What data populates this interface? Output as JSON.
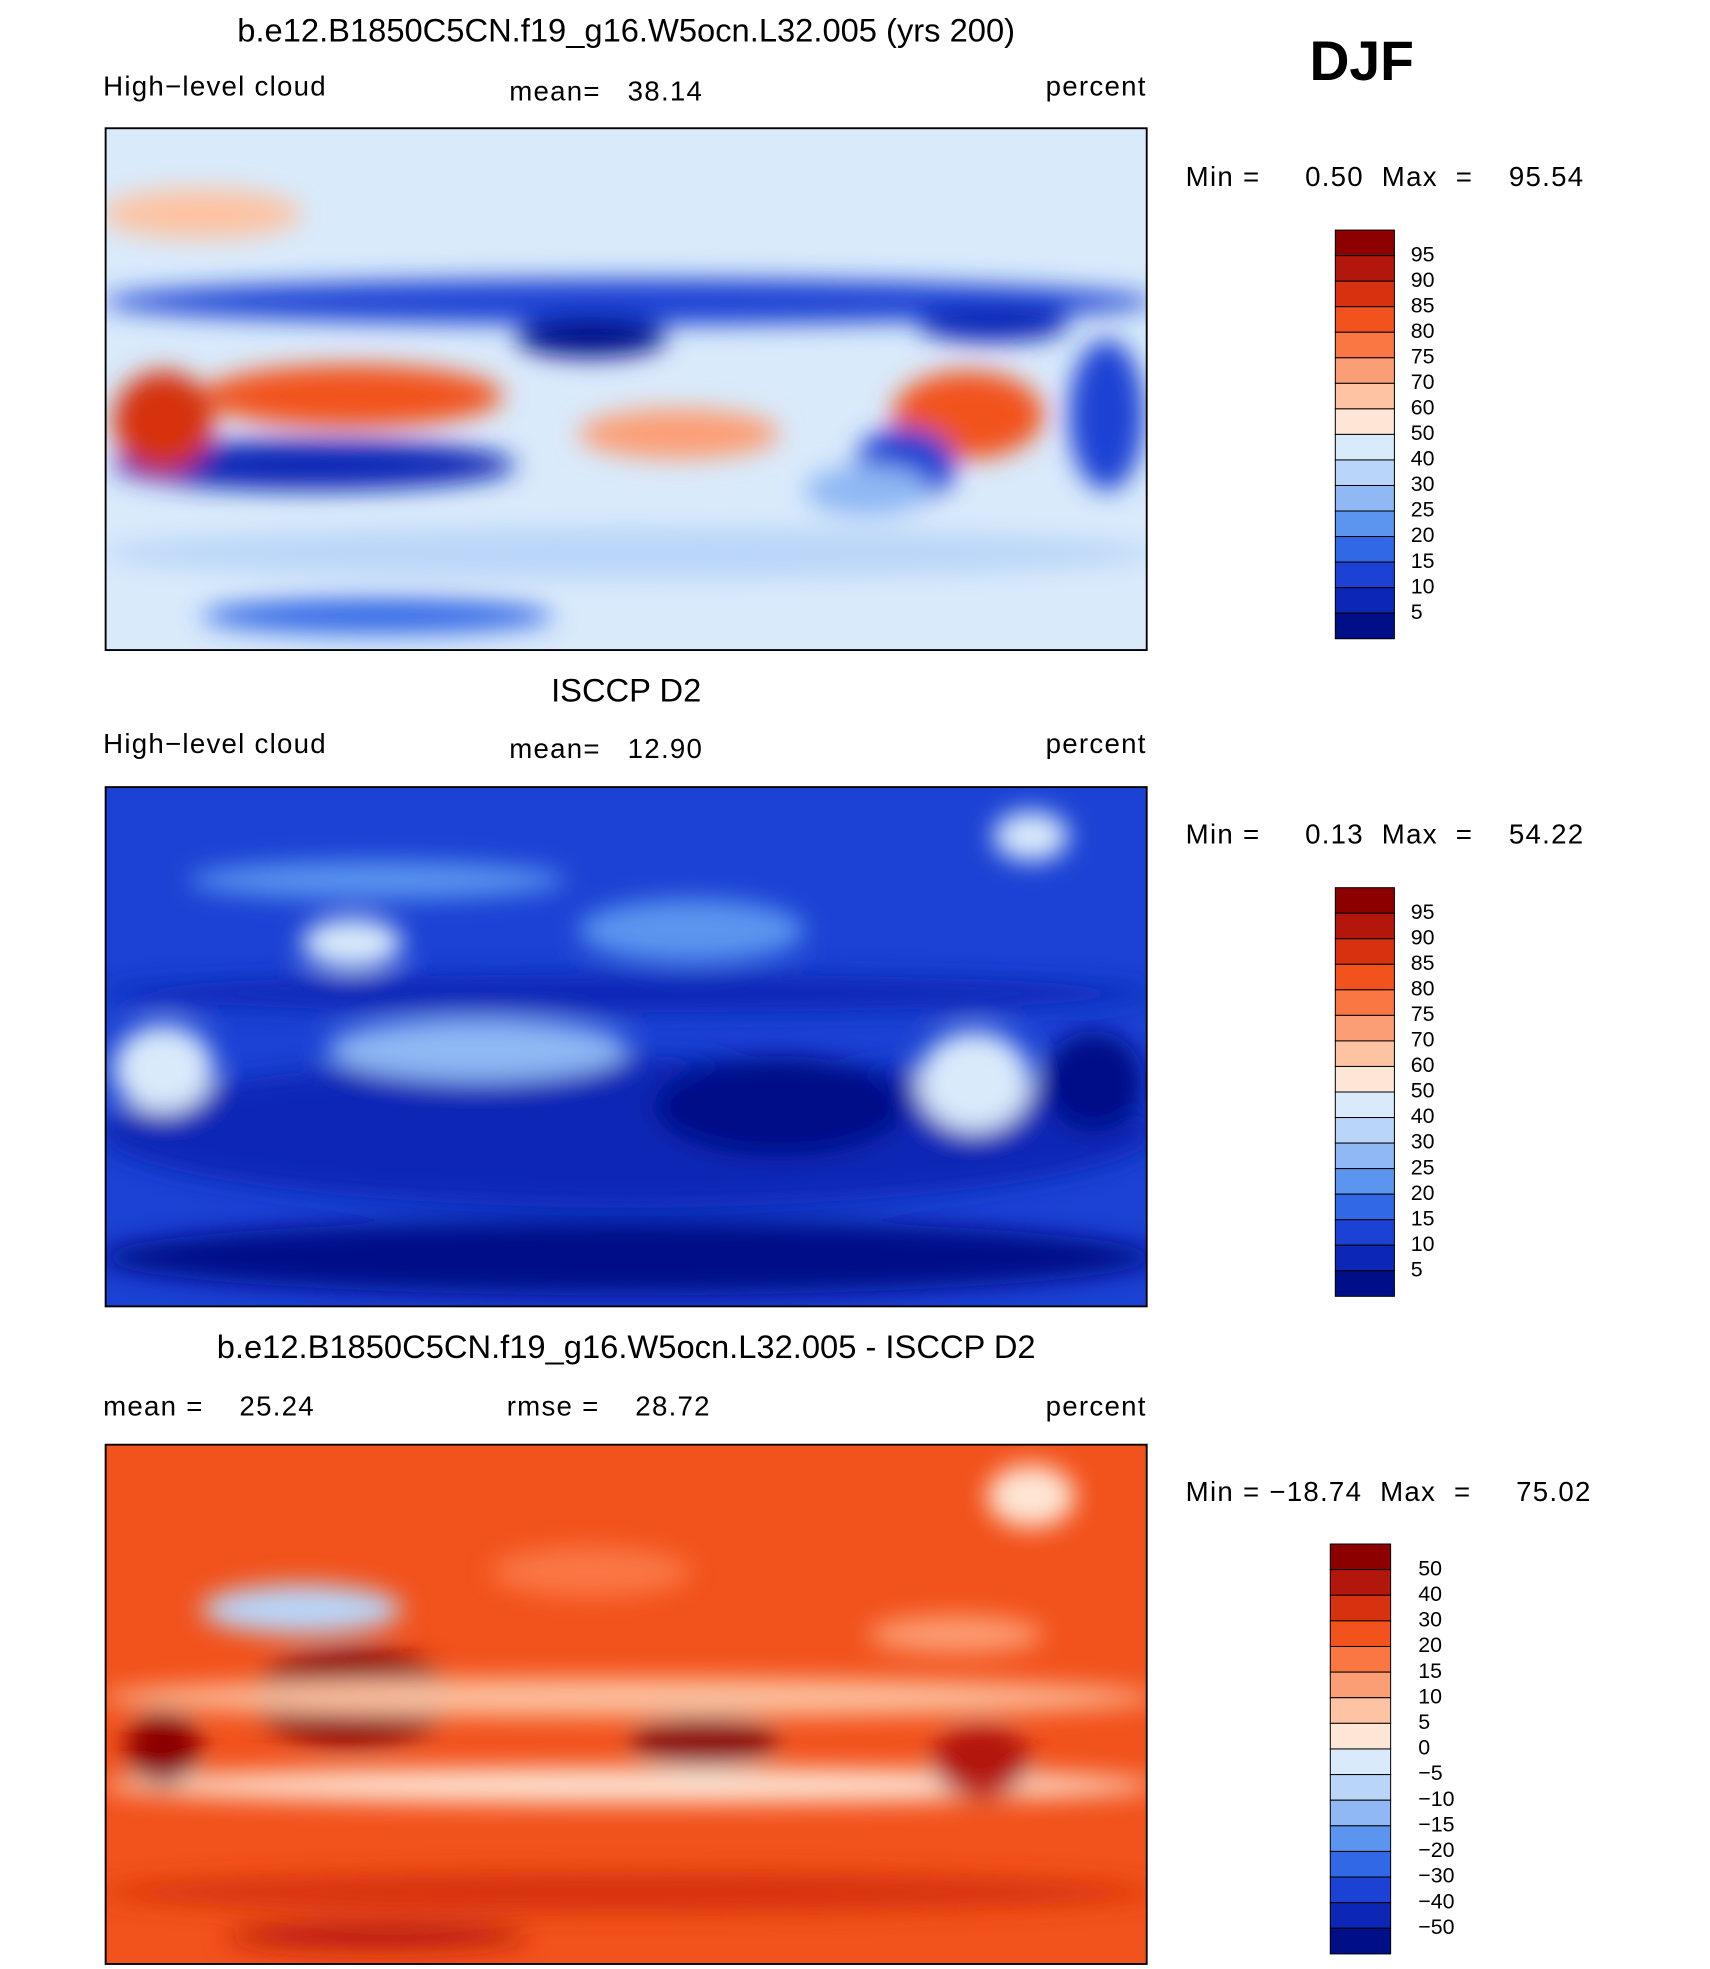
{
  "season": "DJF",
  "panels": [
    {
      "title": "b.e12.B1850C5CN.f19_g16.W5ocn.L32.005 (yrs 200)",
      "left_label": "High−level cloud",
      "center_label": "mean=   38.14",
      "right_label": "percent",
      "min_max": "Min =     0.50  Max  =    95.54",
      "colorbar": {
        "labels": [
          "95",
          "90",
          "85",
          "80",
          "75",
          "70",
          "60",
          "50",
          "40",
          "30",
          "25",
          "20",
          "15",
          "10",
          "5"
        ],
        "colors": [
          "#8c0000",
          "#b3170c",
          "#d63210",
          "#f2521c",
          "#fa7744",
          "#fc9e75",
          "#fdc3a2",
          "#fee6d6",
          "#d9eafb",
          "#b9d5f8",
          "#8fb8f4",
          "#5c95ef",
          "#3168e6",
          "#1b42d4",
          "#0c26b6",
          "#000f88"
        ]
      }
    },
    {
      "title": "ISCCP D2",
      "left_label": "High−level cloud",
      "center_label": "mean=   12.90",
      "right_label": "percent",
      "min_max": "Min =     0.13  Max  =    54.22",
      "colorbar": {
        "labels": [
          "95",
          "90",
          "85",
          "80",
          "75",
          "70",
          "60",
          "50",
          "40",
          "30",
          "25",
          "20",
          "15",
          "10",
          "5"
        ],
        "colors": [
          "#8c0000",
          "#b3170c",
          "#d63210",
          "#f2521c",
          "#fa7744",
          "#fc9e75",
          "#fdc3a2",
          "#fee6d6",
          "#d9eafb",
          "#b9d5f8",
          "#8fb8f4",
          "#5c95ef",
          "#3168e6",
          "#1b42d4",
          "#0c26b6",
          "#000f88"
        ]
      }
    },
    {
      "title": "b.e12.B1850C5CN.f19_g16.W5ocn.L32.005 - ISCCP D2",
      "left_label": "mean =    25.24",
      "center_label": "rmse =    28.72",
      "right_label": "percent",
      "min_max": "Min = −18.74  Max  =     75.02",
      "colorbar": {
        "labels": [
          "50",
          "40",
          "30",
          "20",
          "15",
          "10",
          "5",
          "0",
          "−5",
          "−10",
          "−15",
          "−20",
          "−30",
          "−40",
          "−50"
        ],
        "colors": [
          "#8c0000",
          "#b3170c",
          "#d63210",
          "#f2521c",
          "#fa7744",
          "#fc9e75",
          "#fdc3a2",
          "#fee6d6",
          "#d9eafb",
          "#b9d5f8",
          "#8fb8f4",
          "#5c95ef",
          "#3168e6",
          "#1b42d4",
          "#0c26b6",
          "#000f88"
        ]
      }
    }
  ]
}
